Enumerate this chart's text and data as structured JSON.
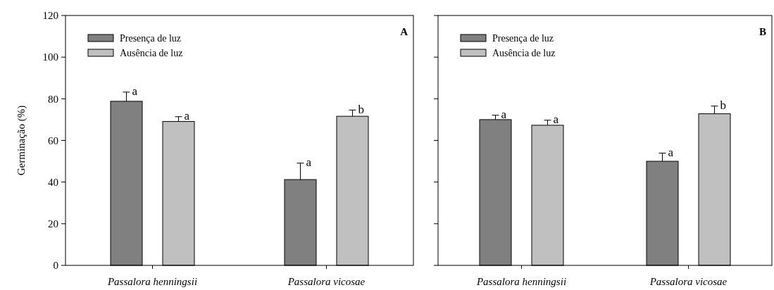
{
  "chart_data": [
    {
      "type": "bar",
      "title": "A",
      "ylabel": "Germinação (%)",
      "categories": [
        "Passalora henningsii",
        "Passalora vicosae"
      ],
      "series": [
        {
          "name": "Presença de luz",
          "color": "#808080",
          "values": [
            78.8,
            41.2
          ],
          "errors": [
            4.4,
            7.9
          ]
        },
        {
          "name": "Ausência de luz",
          "color": "#c0c0c0",
          "values": [
            69.1,
            71.6
          ],
          "errors": [
            2.3,
            3.0
          ]
        }
      ],
      "ylim": [
        0,
        120
      ],
      "yticks": [
        0,
        20,
        40,
        60,
        80,
        100,
        120
      ],
      "grid": false,
      "legend": "top left",
      "annotations": [
        "a",
        "a",
        "a",
        "b"
      ]
    },
    {
      "type": "bar",
      "title": "B",
      "categories": [
        "Passalora henningsii",
        "Passalora vicosae"
      ],
      "series": [
        {
          "name": "Presença de luz",
          "color": "#808080",
          "values": [
            70.0,
            50.0
          ],
          "errors": [
            2.1,
            3.9
          ]
        },
        {
          "name": "Ausência de luz",
          "color": "#c0c0c0",
          "values": [
            67.3,
            72.8
          ],
          "errors": [
            2.4,
            3.7
          ]
        }
      ],
      "ylim": [
        0,
        120
      ],
      "yticks": [
        0,
        20,
        40,
        60,
        80,
        100,
        120
      ],
      "grid": false,
      "legend": "top left",
      "tick_labels": "x",
      "annotations": [
        "a",
        "a",
        "a",
        "b"
      ]
    }
  ]
}
